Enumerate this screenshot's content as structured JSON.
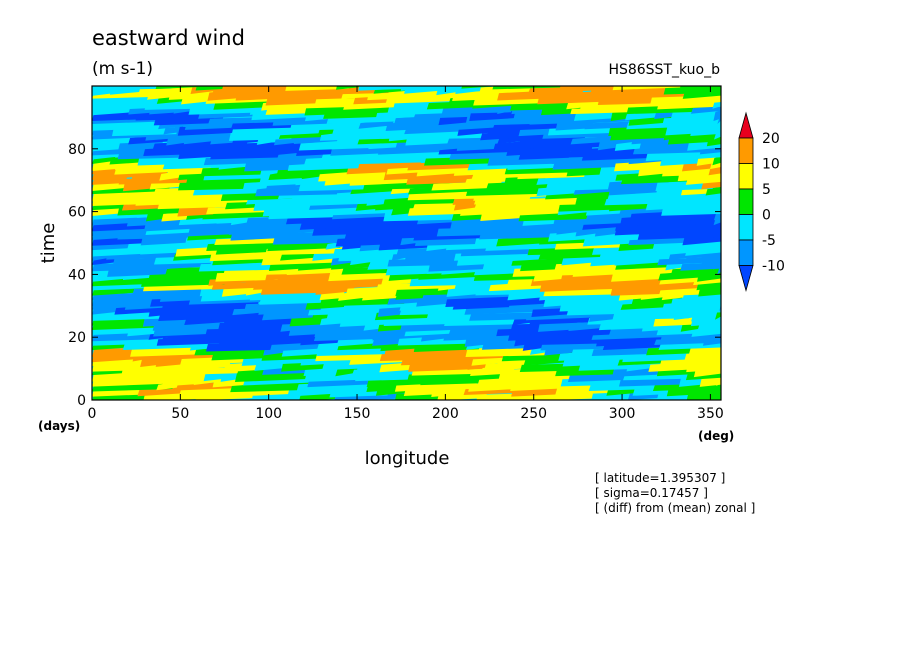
{
  "chart_data": {
    "type": "heatmap",
    "title": "eastward wind",
    "units": "(m s-1)",
    "experiment": "HS86SST_kuo_b",
    "xlabel": "longitude",
    "xunit": "(deg)",
    "ylabel": "time",
    "yunit": "(days)",
    "xlim": [
      0,
      356
    ],
    "ylim": [
      0,
      100
    ],
    "xticks": [
      0,
      50,
      100,
      150,
      200,
      250,
      300,
      350
    ],
    "yticks": [
      0,
      20,
      40,
      60,
      80
    ],
    "colorbar": {
      "levels": [
        "20",
        "10",
        "5",
        "0",
        "-5",
        "-10"
      ],
      "bins": [
        {
          "range": ">20",
          "color": "#e8001e"
        },
        {
          "range": "10 to 20",
          "color": "#ff9a00"
        },
        {
          "range": "5 to 10",
          "color": "#ffff00"
        },
        {
          "range": "0 to 5",
          "color": "#00e600"
        },
        {
          "range": "-5 to 0",
          "color": "#00e6ff"
        },
        {
          "range": "-10 to -5",
          "color": "#0096ff"
        },
        {
          "range": "<-10",
          "color": "#0046ff"
        }
      ]
    },
    "annotations": [
      "[ latitude=1.395307 ]",
      "[ sigma=0.17457 ]",
      "[ (diff) from (mean) zonal ]"
    ]
  }
}
